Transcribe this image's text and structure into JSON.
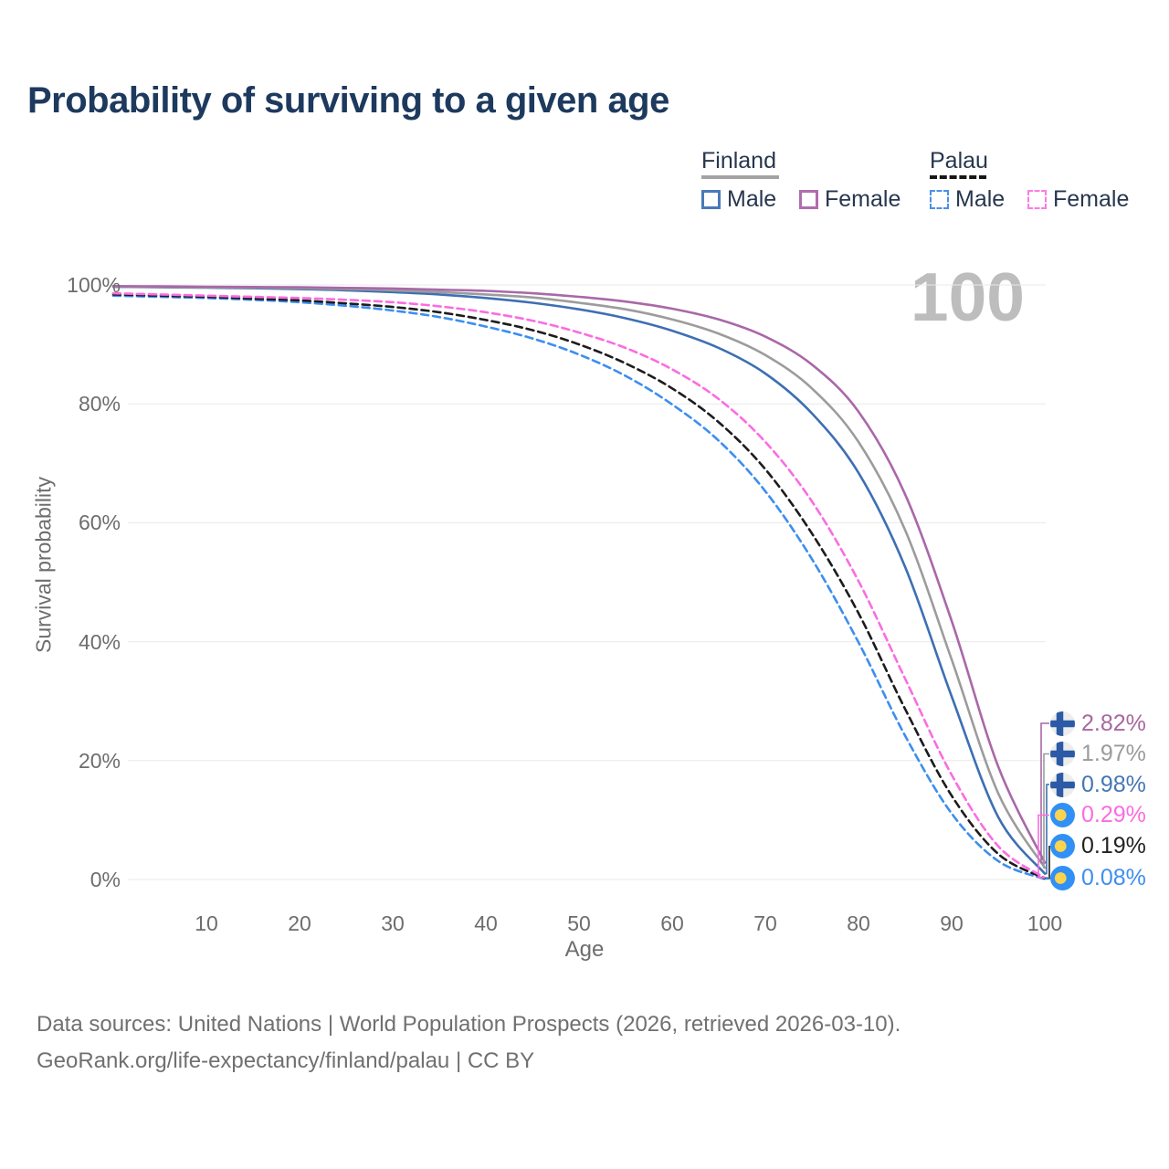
{
  "title": "Probability of surviving to a given age",
  "watermark_age": "100",
  "legend": {
    "groups": [
      {
        "label": "Finland",
        "line_style": "solid",
        "underline_color": "#a3a3a3",
        "items": [
          {
            "label": "Male",
            "color": "#4a7ab8"
          },
          {
            "label": "Female",
            "color": "#b06dad"
          }
        ]
      },
      {
        "label": "Palau",
        "line_style": "dashed",
        "underline_color": "#161616",
        "items": [
          {
            "label": "Male",
            "color": "#4a90e8"
          },
          {
            "label": "Female",
            "color": "#fb7ce4"
          }
        ]
      }
    ]
  },
  "chart_data": {
    "type": "line",
    "title": "Probability of surviving to a given age",
    "xlabel": "Age",
    "ylabel": "Survival probability",
    "xlim": [
      0,
      100
    ],
    "ylim": [
      0,
      100
    ],
    "grid": "horizontal",
    "x_ticks": [
      10,
      20,
      30,
      40,
      50,
      60,
      70,
      80,
      90,
      100
    ],
    "y_ticks": [
      {
        "value": 0,
        "label": "0%"
      },
      {
        "value": 20,
        "label": "20%"
      },
      {
        "value": 40,
        "label": "40%"
      },
      {
        "value": 60,
        "label": "60%"
      },
      {
        "value": 80,
        "label": "80%"
      },
      {
        "value": 100,
        "label": "100%"
      }
    ],
    "x": [
      0,
      5,
      10,
      15,
      20,
      25,
      30,
      35,
      40,
      45,
      50,
      55,
      60,
      65,
      70,
      75,
      80,
      85,
      90,
      95,
      100
    ],
    "series": [
      {
        "key": "finland_female",
        "name": "Finland Female",
        "country": "Finland",
        "sex": "Female",
        "line": "solid",
        "color": "#a968a8",
        "values": [
          99.8,
          99.75,
          99.7,
          99.65,
          99.6,
          99.5,
          99.4,
          99.2,
          99.0,
          98.6,
          98.0,
          97.2,
          96.0,
          94.2,
          91.3,
          86.6,
          78.7,
          64.8,
          43.5,
          19.0,
          2.82
        ]
      },
      {
        "key": "finland_total",
        "name": "Finland Total",
        "country": "Finland",
        "sex": "Total",
        "line": "solid",
        "color": "#9c9c9c",
        "values": [
          99.7,
          99.66,
          99.6,
          99.55,
          99.45,
          99.3,
          99.1,
          98.8,
          98.4,
          97.9,
          97.0,
          95.9,
          94.2,
          91.8,
          88.2,
          82.6,
          73.6,
          58.8,
          37.0,
          14.5,
          1.97
        ]
      },
      {
        "key": "finland_male",
        "name": "Finland Male",
        "country": "Finland",
        "sex": "Male",
        "line": "solid",
        "color": "#3d6fb4",
        "values": [
          99.7,
          99.6,
          99.55,
          99.45,
          99.3,
          99.1,
          98.8,
          98.4,
          97.8,
          97.0,
          95.9,
          94.4,
          92.3,
          89.4,
          85.1,
          78.4,
          68.4,
          52.6,
          30.8,
          10.5,
          0.98
        ]
      },
      {
        "key": "palau_female",
        "name": "Palau Female",
        "country": "Palau",
        "sex": "Female",
        "line": "dashed",
        "color": "#fb6ce1",
        "values": [
          98.6,
          98.4,
          98.2,
          98.0,
          97.8,
          97.5,
          97.1,
          96.4,
          95.4,
          94.0,
          92.0,
          89.4,
          85.8,
          80.8,
          73.6,
          63.6,
          50.2,
          33.8,
          17.6,
          5.6,
          0.29
        ]
      },
      {
        "key": "palau_total",
        "name": "Palau Total",
        "country": "Palau",
        "sex": "Total",
        "line": "dashed",
        "color": "#1c1c1c",
        "values": [
          98.4,
          98.2,
          98.0,
          97.7,
          97.4,
          96.9,
          96.3,
          95.4,
          94.1,
          92.4,
          90.0,
          86.8,
          82.6,
          76.9,
          69.0,
          58.2,
          44.8,
          28.7,
          14.1,
          4.3,
          0.19
        ]
      },
      {
        "key": "palau_male",
        "name": "Palau Male",
        "country": "Palau",
        "sex": "Male",
        "line": "dashed",
        "color": "#3c8ef0",
        "values": [
          98.2,
          98.0,
          97.8,
          97.5,
          97.1,
          96.5,
          95.7,
          94.6,
          93.0,
          91.0,
          88.3,
          84.7,
          79.9,
          73.8,
          65.3,
          53.9,
          39.9,
          24.2,
          11.1,
          3.1,
          0.08
        ]
      }
    ],
    "end_labels": [
      {
        "series_key": "finland_female",
        "flag": "finland",
        "value": "2.82%",
        "color": "#a7679f"
      },
      {
        "series_key": "finland_total",
        "flag": "finland",
        "value": "1.97%",
        "color": "#9b9b9b"
      },
      {
        "series_key": "finland_male",
        "flag": "finland",
        "value": "0.98%",
        "color": "#4576b4"
      },
      {
        "series_key": "palau_female",
        "flag": "palau",
        "value": "0.29%",
        "color": "#fb6ce1"
      },
      {
        "series_key": "palau_total",
        "flag": "palau",
        "value": "0.19%",
        "color": "#222222"
      },
      {
        "series_key": "palau_male",
        "flag": "palau",
        "value": "0.08%",
        "color": "#3d8ff0"
      }
    ]
  },
  "footer": {
    "line1": "Data sources: United Nations | World Population Prospects (2026, retrieved 2026-03-10).",
    "line2": "GeoRank.org/life-expectancy/finland/palau | CC BY"
  }
}
